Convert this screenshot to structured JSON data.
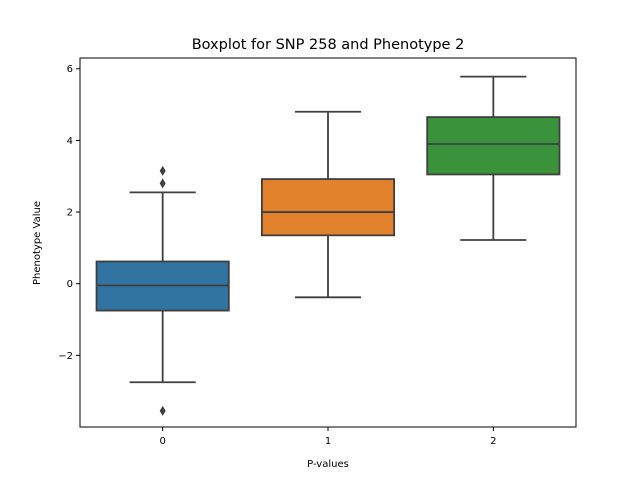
{
  "chart_data": {
    "type": "boxplot",
    "title": "Boxplot for SNP 258 and Phenotype 2",
    "xlabel": "P-values",
    "ylabel": "Phenotype Value",
    "ylim": [
      -4.0,
      6.3
    ],
    "yticks": [
      -2,
      0,
      2,
      4,
      6
    ],
    "ytick_labels": [
      "−2",
      "0",
      "2",
      "4",
      "6"
    ],
    "grid": false,
    "categories": [
      "0",
      "1",
      "2"
    ],
    "boxes": [
      {
        "category": "0",
        "color": "#3274a1",
        "whisker_low": -2.75,
        "q1": -0.75,
        "median": -0.05,
        "q3": 0.62,
        "whisker_high": 2.55,
        "outliers": [
          3.15,
          2.8,
          -3.55
        ]
      },
      {
        "category": "1",
        "color": "#e1812c",
        "whisker_low": -0.38,
        "q1": 1.35,
        "median": 2.0,
        "q3": 2.92,
        "whisker_high": 4.8,
        "outliers": []
      },
      {
        "category": "2",
        "color": "#3a923a",
        "whisker_low": 1.22,
        "q1": 3.05,
        "median": 3.9,
        "q3": 4.65,
        "whisker_high": 5.78,
        "outliers": []
      }
    ]
  }
}
